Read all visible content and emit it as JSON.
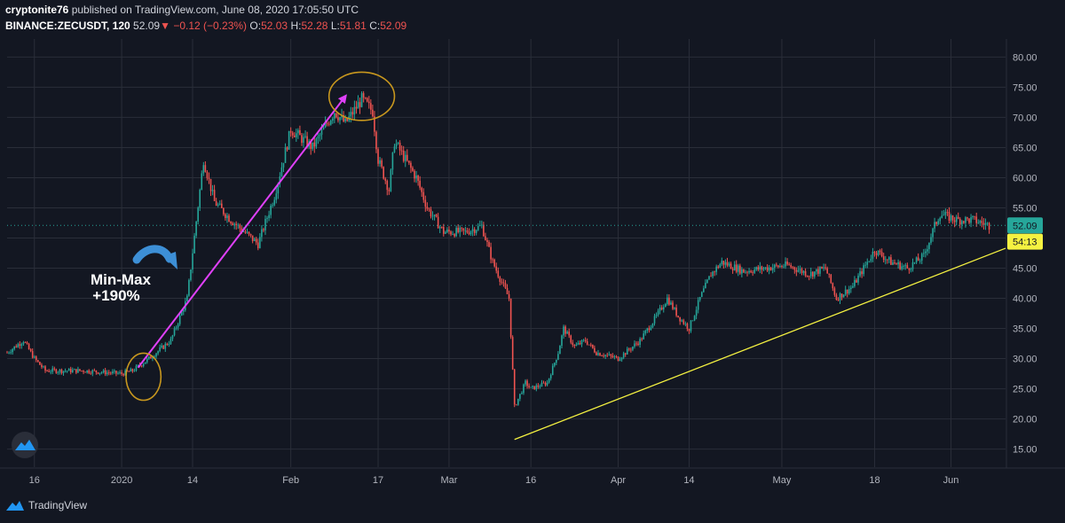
{
  "header": {
    "author": "cryptonite76",
    "published": "published on TradingView.com, June 08, 2020 17:05:50 UTC",
    "symbol": "BINANCE:ZECUSDT, 120",
    "last": "52.09",
    "change": "−0.12 (−0.23%)",
    "o_label": "O:",
    "o_value": "52.03",
    "h_label": "H:",
    "h_value": "52.28",
    "l_label": "L:",
    "l_value": "51.81",
    "c_label": "C:",
    "c_value": "52.09"
  },
  "footer": {
    "brand": "TradingView"
  },
  "colors": {
    "background": "#131722",
    "up": "#26a69a",
    "down": "#ef5350",
    "grid": "#2a2e39",
    "trend": "#f5f241",
    "arrow": "#e040fb",
    "circle": "#c8971e",
    "price_tag": "#26a69a",
    "countdown_tag": "#f5f241"
  },
  "chart_data": {
    "type": "candlestick",
    "ylim": [
      12,
      83
    ],
    "y_ticks": [
      15,
      20,
      25,
      30,
      35,
      40,
      45,
      50,
      55,
      60,
      65,
      70,
      75,
      80
    ],
    "y_tick_labels": [
      "15.00",
      "20.00",
      "25.00",
      "30.00",
      "35.00",
      "40.00",
      "45.00",
      "50.00",
      "55.00",
      "60.00",
      "65.00",
      "70.00",
      "75.00",
      "80.00"
    ],
    "x_start": "2019-12-11",
    "x_end": "2020-06-11",
    "x_ticks": [
      {
        "date": "2019-12-16",
        "label": "16"
      },
      {
        "date": "2020-01-01",
        "label": "2020"
      },
      {
        "date": "2020-01-14",
        "label": "14"
      },
      {
        "date": "2020-02-01",
        "label": "Feb"
      },
      {
        "date": "2020-02-17",
        "label": "17"
      },
      {
        "date": "2020-03-01",
        "label": "Mar"
      },
      {
        "date": "2020-03-16",
        "label": "16"
      },
      {
        "date": "2020-04-01",
        "label": "Apr"
      },
      {
        "date": "2020-04-14",
        "label": "14"
      },
      {
        "date": "2020-05-01",
        "label": "May"
      },
      {
        "date": "2020-05-18",
        "label": "18"
      },
      {
        "date": "2020-06-01",
        "label": "Jun"
      }
    ],
    "price_path": [
      [
        "2019-12-11",
        31
      ],
      [
        "2019-12-14",
        33
      ],
      [
        "2019-12-16",
        30
      ],
      [
        "2019-12-18",
        28
      ],
      [
        "2019-12-25",
        28
      ],
      [
        "2020-01-01",
        27.5
      ],
      [
        "2020-01-03",
        28
      ],
      [
        "2020-01-06",
        30
      ],
      [
        "2020-01-10",
        33
      ],
      [
        "2020-01-13",
        40
      ],
      [
        "2020-01-16",
        63
      ],
      [
        "2020-01-18",
        56
      ],
      [
        "2020-01-21",
        53
      ],
      [
        "2020-01-26",
        49
      ],
      [
        "2020-01-29",
        57
      ],
      [
        "2020-02-01",
        68
      ],
      [
        "2020-02-05",
        65
      ],
      [
        "2020-02-09",
        71
      ],
      [
        "2020-02-11",
        69
      ],
      [
        "2020-02-14",
        73
      ],
      [
        "2020-02-16",
        71
      ],
      [
        "2020-02-17",
        63
      ],
      [
        "2020-02-19",
        58
      ],
      [
        "2020-02-20",
        66
      ],
      [
        "2020-02-24",
        60
      ],
      [
        "2020-02-26",
        55
      ],
      [
        "2020-02-29",
        51
      ],
      [
        "2020-03-04",
        51
      ],
      [
        "2020-03-07",
        52
      ],
      [
        "2020-03-09",
        46
      ],
      [
        "2020-03-12",
        40
      ],
      [
        "2020-03-13",
        22
      ],
      [
        "2020-03-15",
        26
      ],
      [
        "2020-03-16",
        25
      ],
      [
        "2020-03-19",
        26
      ],
      [
        "2020-03-21",
        31
      ],
      [
        "2020-03-22",
        35
      ],
      [
        "2020-03-24",
        32
      ],
      [
        "2020-03-26",
        33
      ],
      [
        "2020-03-28",
        31
      ],
      [
        "2020-04-01",
        30
      ],
      [
        "2020-04-05",
        33
      ],
      [
        "2020-04-08",
        37
      ],
      [
        "2020-04-10",
        40
      ],
      [
        "2020-04-12",
        37
      ],
      [
        "2020-04-14",
        35
      ],
      [
        "2020-04-16",
        40
      ],
      [
        "2020-04-18",
        44
      ],
      [
        "2020-04-20",
        46
      ],
      [
        "2020-04-24",
        44.5
      ],
      [
        "2020-04-28",
        45
      ],
      [
        "2020-05-02",
        45.5
      ],
      [
        "2020-05-06",
        44
      ],
      [
        "2020-05-09",
        45
      ],
      [
        "2020-05-11",
        40
      ],
      [
        "2020-05-14",
        42
      ],
      [
        "2020-05-18",
        48
      ],
      [
        "2020-05-21",
        46
      ],
      [
        "2020-05-24",
        45
      ],
      [
        "2020-05-27",
        47
      ],
      [
        "2020-05-29",
        52
      ],
      [
        "2020-05-30",
        54
      ],
      [
        "2020-06-02",
        53
      ],
      [
        "2020-06-05",
        53
      ],
      [
        "2020-06-08",
        52.09
      ]
    ],
    "trendline": {
      "from": [
        "2020-03-13",
        16.6
      ],
      "to": [
        "2020-06-11",
        48.3
      ]
    },
    "arrow": {
      "from": [
        "2020-01-04",
        28.5
      ],
      "to": [
        "2020-02-11",
        73.5
      ]
    },
    "circles": [
      {
        "center": [
          "2020-01-05",
          27
        ],
        "rx_days": 3.2,
        "ry_units": 3.9
      },
      {
        "center": [
          "2020-02-14",
          73.5
        ],
        "rx_days": 6,
        "ry_units": 4
      }
    ],
    "annotation": {
      "line1": "Min-Max",
      "line2": "+190%",
      "at": [
        "2019-12-31",
        42
      ]
    },
    "last_price": {
      "value": 52.09,
      "label": "52.09"
    },
    "countdown": {
      "value": 49.4,
      "label": "54:13"
    }
  }
}
